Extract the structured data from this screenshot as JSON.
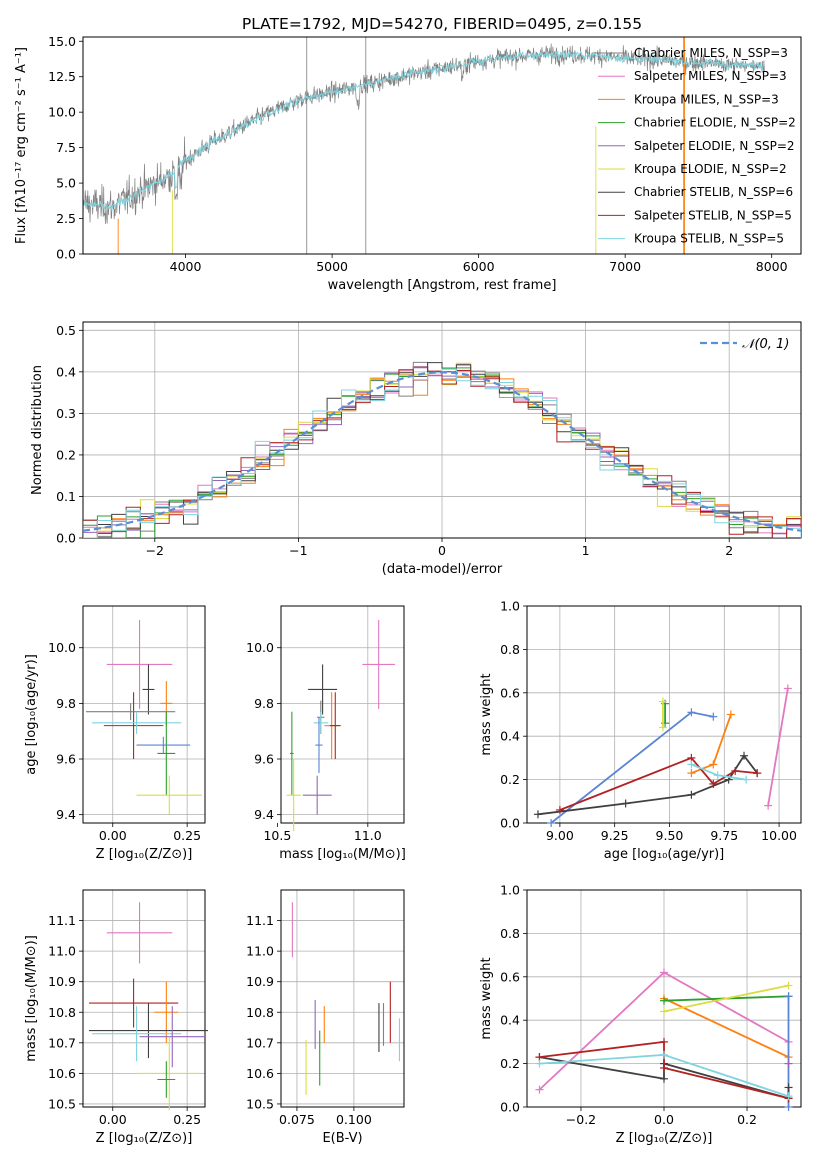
{
  "figure": {
    "title": "PLATE=1792, MJD=54270, FIBERID=0495, z=0.155"
  },
  "colors": {
    "Chabrier MILES": "#808080",
    "Salpeter MILES": "#e377c2",
    "Kroupa MILES": "#ff7f0e",
    "Chabrier ELODIE": "#2ca02c",
    "Salpeter ELODIE": "#9467bd",
    "Kroupa ELODIE": "#dbdb46",
    "Chabrier STELIB": "#404040",
    "Salpeter STELIB": "#b22222",
    "Kroupa STELIB": "#7fd4e0",
    "blue": "#5a84d6",
    "gaussian": "#5a8ed6"
  },
  "chart_data": [
    {
      "id": "spectrum",
      "type": "line",
      "title": "PLATE=1792, MJD=54270, FIBERID=0495, z=0.155",
      "xlabel": "wavelength [Angstrom, rest frame]",
      "ylabel": "Flux [fλ10⁻¹⁷ erg cm⁻² s⁻¹ A⁻¹]",
      "xlim": [
        3300,
        8200
      ],
      "ylim": [
        0,
        15.3
      ],
      "xticks": [
        4000,
        5000,
        6000,
        7000,
        8000
      ],
      "yticks": [
        0.0,
        2.5,
        5.0,
        7.5,
        10.0,
        12.5,
        15.0
      ],
      "legend_position": "right",
      "legend": [
        {
          "label": "Chabrier MILES, N_SSP=3",
          "color": "#808080"
        },
        {
          "label": "Salpeter MILES, N_SSP=3",
          "color": "#e377c2"
        },
        {
          "label": "Kroupa MILES, N_SSP=3",
          "color": "#ff7f0e"
        },
        {
          "label": "Chabrier ELODIE, N_SSP=2",
          "color": "#2ca02c"
        },
        {
          "label": "Salpeter ELODIE, N_SSP=2",
          "color": "#9467bd"
        },
        {
          "label": "Kroupa ELODIE, N_SSP=2",
          "color": "#dbdb46"
        },
        {
          "label": "Chabrier STELIB, N_SSP=6",
          "color": "#404040"
        },
        {
          "label": "Salpeter STELIB, N_SSP=5",
          "color": "#b22222"
        },
        {
          "label": "Kroupa STELIB, N_SSP=5",
          "color": "#7fd4e0"
        }
      ],
      "continuum": {
        "wavelength": [
          3270,
          3500,
          3700,
          3900,
          4000,
          4200,
          4500,
          4800,
          5000,
          5200,
          5500,
          5800,
          6000,
          6200,
          6500,
          6800,
          7000,
          7200,
          7500,
          7800
        ],
        "flux": [
          3.6,
          3.3,
          4.5,
          5.6,
          6.6,
          8.0,
          9.6,
          11.0,
          11.4,
          11.9,
          12.6,
          13.2,
          13.6,
          13.9,
          14.1,
          14.0,
          13.8,
          13.7,
          13.5,
          13.3
        ]
      }
    },
    {
      "id": "residuals",
      "type": "line",
      "xlabel": "(data-model)/error",
      "ylabel": "Normed distribution",
      "xlim": [
        -2.5,
        2.5
      ],
      "ylim": [
        0,
        0.52
      ],
      "xticks": [
        -2,
        -1,
        0,
        1,
        2
      ],
      "yticks": [
        0.0,
        0.1,
        0.2,
        0.3,
        0.4,
        0.5
      ],
      "grid": true,
      "legend_position": "top-right",
      "gaussian_label": "𝒩(0, 1)",
      "bin_width": 0.1
    },
    {
      "id": "z-age",
      "type": "scatter",
      "xlabel": "Z [log₁₀(Z/Z⊙)]",
      "ylabel": "age  [log₁₀(age/yr)]",
      "xlim": [
        -0.1,
        0.31
      ],
      "ylim": [
        9.37,
        10.15
      ],
      "xticks": [
        0.0,
        0.25
      ],
      "yticks": [
        9.4,
        9.6,
        9.8,
        10.0
      ],
      "grid": true,
      "points": [
        {
          "model": "Salpeter MILES",
          "x": 0.09,
          "xerr": 0.11,
          "y": 9.94,
          "yerr": 0.16,
          "color": "#e377c2"
        },
        {
          "model": "Chabrier STELIB",
          "x": 0.12,
          "xerr": 0.02,
          "y": 9.85,
          "yerr": 0.09,
          "color": "#404040"
        },
        {
          "model": "Kroupa MILES",
          "x": 0.18,
          "xerr": 0.02,
          "y": 9.8,
          "yerr": 0.08,
          "color": "#ff7f0e"
        },
        {
          "model": "Salpeter STELIB",
          "x": 0.07,
          "xerr": 0.1,
          "y": 9.72,
          "yerr": 0.12,
          "color": "#b22222"
        },
        {
          "model": "Chabrier MILES",
          "x": 0.06,
          "xerr": 0.15,
          "y": 9.77,
          "yerr": 0.03,
          "color": "#808080"
        },
        {
          "model": "Kroupa STELIB",
          "x": 0.08,
          "xerr": 0.15,
          "y": 9.73,
          "yerr": 0.04,
          "color": "#7fd4e0"
        },
        {
          "model": "Chabrier ELODIE",
          "x": 0.18,
          "xerr": 0.03,
          "y": 9.62,
          "yerr": 0.15,
          "color": "#2ca02c"
        },
        {
          "model": "Kroupa ELODIE",
          "x": 0.19,
          "xerr": 0.11,
          "y": 9.47,
          "yerr": 0.07,
          "color": "#dbdb46"
        },
        {
          "model": "blue",
          "x": 0.17,
          "xerr": 0.09,
          "y": 9.65,
          "yerr": 0.03,
          "color": "#5a84d6"
        }
      ]
    },
    {
      "id": "mass-age",
      "type": "scatter",
      "xlabel": "mass [log₁₀(M/M⊙)]",
      "ylabel": "",
      "xlim": [
        10.52,
        11.2
      ],
      "ylim": [
        9.37,
        10.15
      ],
      "xticks": [
        10.5,
        11.0
      ],
      "yticks": [
        9.4,
        9.6,
        9.8,
        10.0
      ],
      "grid": true,
      "points": [
        {
          "model": "Salpeter MILES",
          "x": 11.06,
          "xerr": 0.09,
          "y": 9.94,
          "yerr": 0.16,
          "color": "#e377c2"
        },
        {
          "model": "Chabrier STELIB",
          "x": 10.75,
          "xerr": 0.08,
          "y": 9.85,
          "yerr": 0.09,
          "color": "#404040"
        },
        {
          "model": "Kroupa MILES",
          "x": 10.8,
          "xerr": 0.04,
          "y": 9.72,
          "yerr": 0.12,
          "color": "#ff7f0e"
        },
        {
          "model": "Salpeter STELIB",
          "x": 10.82,
          "xerr": 0.03,
          "y": 9.72,
          "yerr": 0.12,
          "color": "#b22222"
        },
        {
          "model": "Chabrier MILES",
          "x": 10.74,
          "xerr": 0.02,
          "y": 9.75,
          "yerr": 0.06,
          "color": "#808080"
        },
        {
          "model": "Kroupa STELIB",
          "x": 10.74,
          "xerr": 0.04,
          "y": 9.73,
          "yerr": 0.04,
          "color": "#7fd4e0"
        },
        {
          "model": "Salpeter ELODIE",
          "x": 10.72,
          "xerr": 0.08,
          "y": 9.47,
          "yerr": 0.07,
          "color": "#9467bd"
        },
        {
          "model": "Chabrier ELODIE",
          "x": 10.58,
          "xerr": 0.01,
          "y": 9.62,
          "yerr": 0.15,
          "color": "#2ca02c"
        },
        {
          "model": "Kroupa ELODIE",
          "x": 10.59,
          "xerr": 0.04,
          "y": 9.47,
          "yerr": 0.13,
          "color": "#dbdb46"
        },
        {
          "model": "blue",
          "x": 10.73,
          "xerr": 0.02,
          "y": 9.65,
          "yerr": 0.1,
          "color": "#5a84d6"
        }
      ]
    },
    {
      "id": "age-weight",
      "type": "line",
      "xlabel": "age  [log₁₀(age/yr)]",
      "ylabel": "mass weight",
      "xlim": [
        8.85,
        10.1
      ],
      "ylim": [
        0,
        1.0
      ],
      "xticks": [
        9.0,
        9.25,
        9.5,
        9.75,
        10.0
      ],
      "yticks": [
        0.0,
        0.2,
        0.4,
        0.6,
        0.8,
        1.0
      ],
      "grid": true,
      "series": [
        {
          "model": "Salpeter MILES",
          "color": "#e377c2",
          "x": [
            9.95,
            10.04
          ],
          "y": [
            0.08,
            0.62
          ]
        },
        {
          "model": "Kroupa MILES",
          "color": "#ff7f0e",
          "x": [
            9.6,
            9.7,
            9.78
          ],
          "y": [
            0.23,
            0.27,
            0.5
          ]
        },
        {
          "model": "Chabrier ELODIE",
          "color": "#2ca02c",
          "x": [
            9.48,
            9.48
          ],
          "y": [
            0.46,
            0.55
          ]
        },
        {
          "model": "Kroupa ELODIE",
          "color": "#dbdb46",
          "x": [
            9.47,
            9.47
          ],
          "y": [
            0.44,
            0.56
          ]
        },
        {
          "model": "blue",
          "color": "#5a84d6",
          "x": [
            8.96,
            9.6,
            9.7
          ],
          "y": [
            0.0,
            0.51,
            0.49
          ]
        },
        {
          "model": "Chabrier STELIB",
          "color": "#404040",
          "x": [
            8.9,
            9.3,
            9.6,
            9.77,
            9.84,
            9.9
          ],
          "y": [
            0.04,
            0.09,
            0.13,
            0.2,
            0.31,
            0.23
          ]
        },
        {
          "model": "Salpeter STELIB",
          "color": "#b22222",
          "x": [
            9.0,
            9.6,
            9.7,
            9.8,
            9.9
          ],
          "y": [
            0.06,
            0.3,
            0.18,
            0.24,
            0.23
          ]
        },
        {
          "model": "Kroupa STELIB",
          "color": "#7fd4e0",
          "x": [
            9.6,
            9.72,
            9.85
          ],
          "y": [
            0.27,
            0.22,
            0.2
          ]
        }
      ]
    },
    {
      "id": "z-mass",
      "type": "scatter",
      "xlabel": "Z [log₁₀(Z/Z⊙)]",
      "ylabel": "mass [log₁₀(M/M⊙)]",
      "xlim": [
        -0.1,
        0.31
      ],
      "ylim": [
        10.49,
        11.2
      ],
      "xticks": [
        0.0,
        0.25
      ],
      "yticks": [
        10.5,
        10.6,
        10.7,
        10.8,
        10.9,
        11.0,
        11.1
      ],
      "grid": true,
      "points": [
        {
          "model": "Salpeter MILES",
          "x": 0.09,
          "xerr": 0.11,
          "y": 11.06,
          "yerr": 0.1,
          "color": "#e377c2"
        },
        {
          "model": "Salpeter STELIB",
          "x": 0.07,
          "xerr": 0.15,
          "y": 10.83,
          "yerr": 0.08,
          "color": "#b22222"
        },
        {
          "model": "Kroupa MILES",
          "x": 0.18,
          "xerr": 0.04,
          "y": 10.8,
          "yerr": 0.1,
          "color": "#ff7f0e"
        },
        {
          "model": "Chabrier STELIB",
          "x": 0.12,
          "xerr": 0.2,
          "y": 10.74,
          "yerr": 0.09,
          "color": "#404040"
        },
        {
          "model": "Kroupa STELIB",
          "x": 0.08,
          "xerr": 0.15,
          "y": 10.73,
          "yerr": 0.09,
          "color": "#7fd4e0"
        },
        {
          "model": "Salpeter ELODIE",
          "x": 0.2,
          "xerr": 0.11,
          "y": 10.72,
          "yerr": 0.1,
          "color": "#9467bd"
        },
        {
          "model": "Kroupa ELODIE",
          "x": 0.19,
          "xerr": 0.11,
          "y": 10.6,
          "yerr": 0.12,
          "color": "#dbdb46"
        },
        {
          "model": "Chabrier ELODIE",
          "x": 0.18,
          "xerr": 0.03,
          "y": 10.58,
          "yerr": 0.06,
          "color": "#2ca02c"
        }
      ]
    },
    {
      "id": "ebv-mass",
      "type": "scatter",
      "xlabel": "E(B-V)",
      "ylabel": "",
      "xlim": [
        0.068,
        0.122
      ],
      "ylim": [
        10.49,
        11.2
      ],
      "xticks": [
        0.075,
        0.1
      ],
      "yticks": [
        10.5,
        10.6,
        10.7,
        10.8,
        10.9,
        11.0,
        11.1
      ],
      "grid": true,
      "points": [
        {
          "model": "Salpeter MILES",
          "x": 0.073,
          "xerr": 0,
          "y": 11.07,
          "yerr": 0.09,
          "color": "#e377c2"
        },
        {
          "model": "Kroupa ELODIE",
          "x": 0.079,
          "xerr": 0,
          "y": 10.62,
          "yerr": 0.09,
          "color": "#dbdb46"
        },
        {
          "model": "Salpeter ELODIE",
          "x": 0.083,
          "xerr": 0,
          "y": 10.76,
          "yerr": 0.08,
          "color": "#9467bd"
        },
        {
          "model": "Chabrier ELODIE",
          "x": 0.085,
          "xerr": 0,
          "y": 10.65,
          "yerr": 0.09,
          "color": "#2ca02c"
        },
        {
          "model": "Kroupa MILES",
          "x": 0.087,
          "xerr": 0,
          "y": 10.76,
          "yerr": 0.06,
          "color": "#ff7f0e"
        },
        {
          "model": "Chabrier STELIB",
          "x": 0.111,
          "xerr": 0,
          "y": 10.75,
          "yerr": 0.08,
          "color": "#404040"
        },
        {
          "model": "blue",
          "x": 0.113,
          "xerr": 0,
          "y": 10.76,
          "yerr": 0.07,
          "color": "#5a84d6"
        },
        {
          "model": "Salpeter STELIB",
          "x": 0.116,
          "xerr": 0,
          "y": 10.8,
          "yerr": 0.1,
          "color": "#b22222"
        },
        {
          "model": "Kroupa STELIB",
          "x": 0.12,
          "xerr": 0,
          "y": 10.71,
          "yerr": 0.07,
          "color": "#7fd4e0"
        }
      ]
    },
    {
      "id": "z-weight",
      "type": "line",
      "xlabel": "Z [log₁₀(Z/Z⊙)]",
      "ylabel": "mass weight",
      "xlim": [
        -0.33,
        0.33
      ],
      "ylim": [
        0,
        1.0
      ],
      "xticks": [
        -0.2,
        0.0,
        0.2
      ],
      "yticks": [
        0.0,
        0.2,
        0.4,
        0.6,
        0.8,
        1.0
      ],
      "grid": true,
      "series": [
        {
          "model": "Salpeter MILES",
          "color": "#e377c2",
          "x": [
            -0.3,
            0.0,
            0.3
          ],
          "y": [
            0.08,
            0.62,
            0.3
          ]
        },
        {
          "model": "Kroupa MILES",
          "color": "#ff7f0e",
          "x": [
            0.0,
            0.3
          ],
          "y": [
            0.5,
            0.23
          ]
        },
        {
          "model": "Chabrier ELODIE",
          "color": "#2ca02c",
          "x": [
            0.0,
            0.3
          ],
          "y": [
            0.49,
            0.51
          ]
        },
        {
          "model": "Kroupa ELODIE",
          "color": "#dbdb46",
          "x": [
            0.0,
            0.3
          ],
          "y": [
            0.44,
            0.56
          ]
        },
        {
          "model": "blue",
          "color": "#5a84d6",
          "x": [
            0.3,
            0.3
          ],
          "y": [
            0.51,
            0.0
          ]
        },
        {
          "model": "Chabrier STELIB",
          "color": "#404040",
          "x": [
            -0.3,
            0.0,
            0.0,
            0.3,
            0.3
          ],
          "y": [
            0.23,
            0.13,
            0.2,
            0.04,
            0.09
          ]
        },
        {
          "model": "Salpeter STELIB",
          "color": "#b22222",
          "x": [
            -0.3,
            0.0,
            0.0,
            0.3
          ],
          "y": [
            0.23,
            0.3,
            0.18,
            0.04
          ]
        },
        {
          "model": "Kroupa STELIB",
          "color": "#7fd4e0",
          "x": [
            -0.3,
            0.0,
            0.3
          ],
          "y": [
            0.2,
            0.24,
            0.05
          ]
        },
        {
          "model": "Salpeter ELODIE",
          "color": "#9467bd",
          "x": [
            0.3
          ],
          "y": [
            0.2
          ]
        }
      ]
    }
  ]
}
